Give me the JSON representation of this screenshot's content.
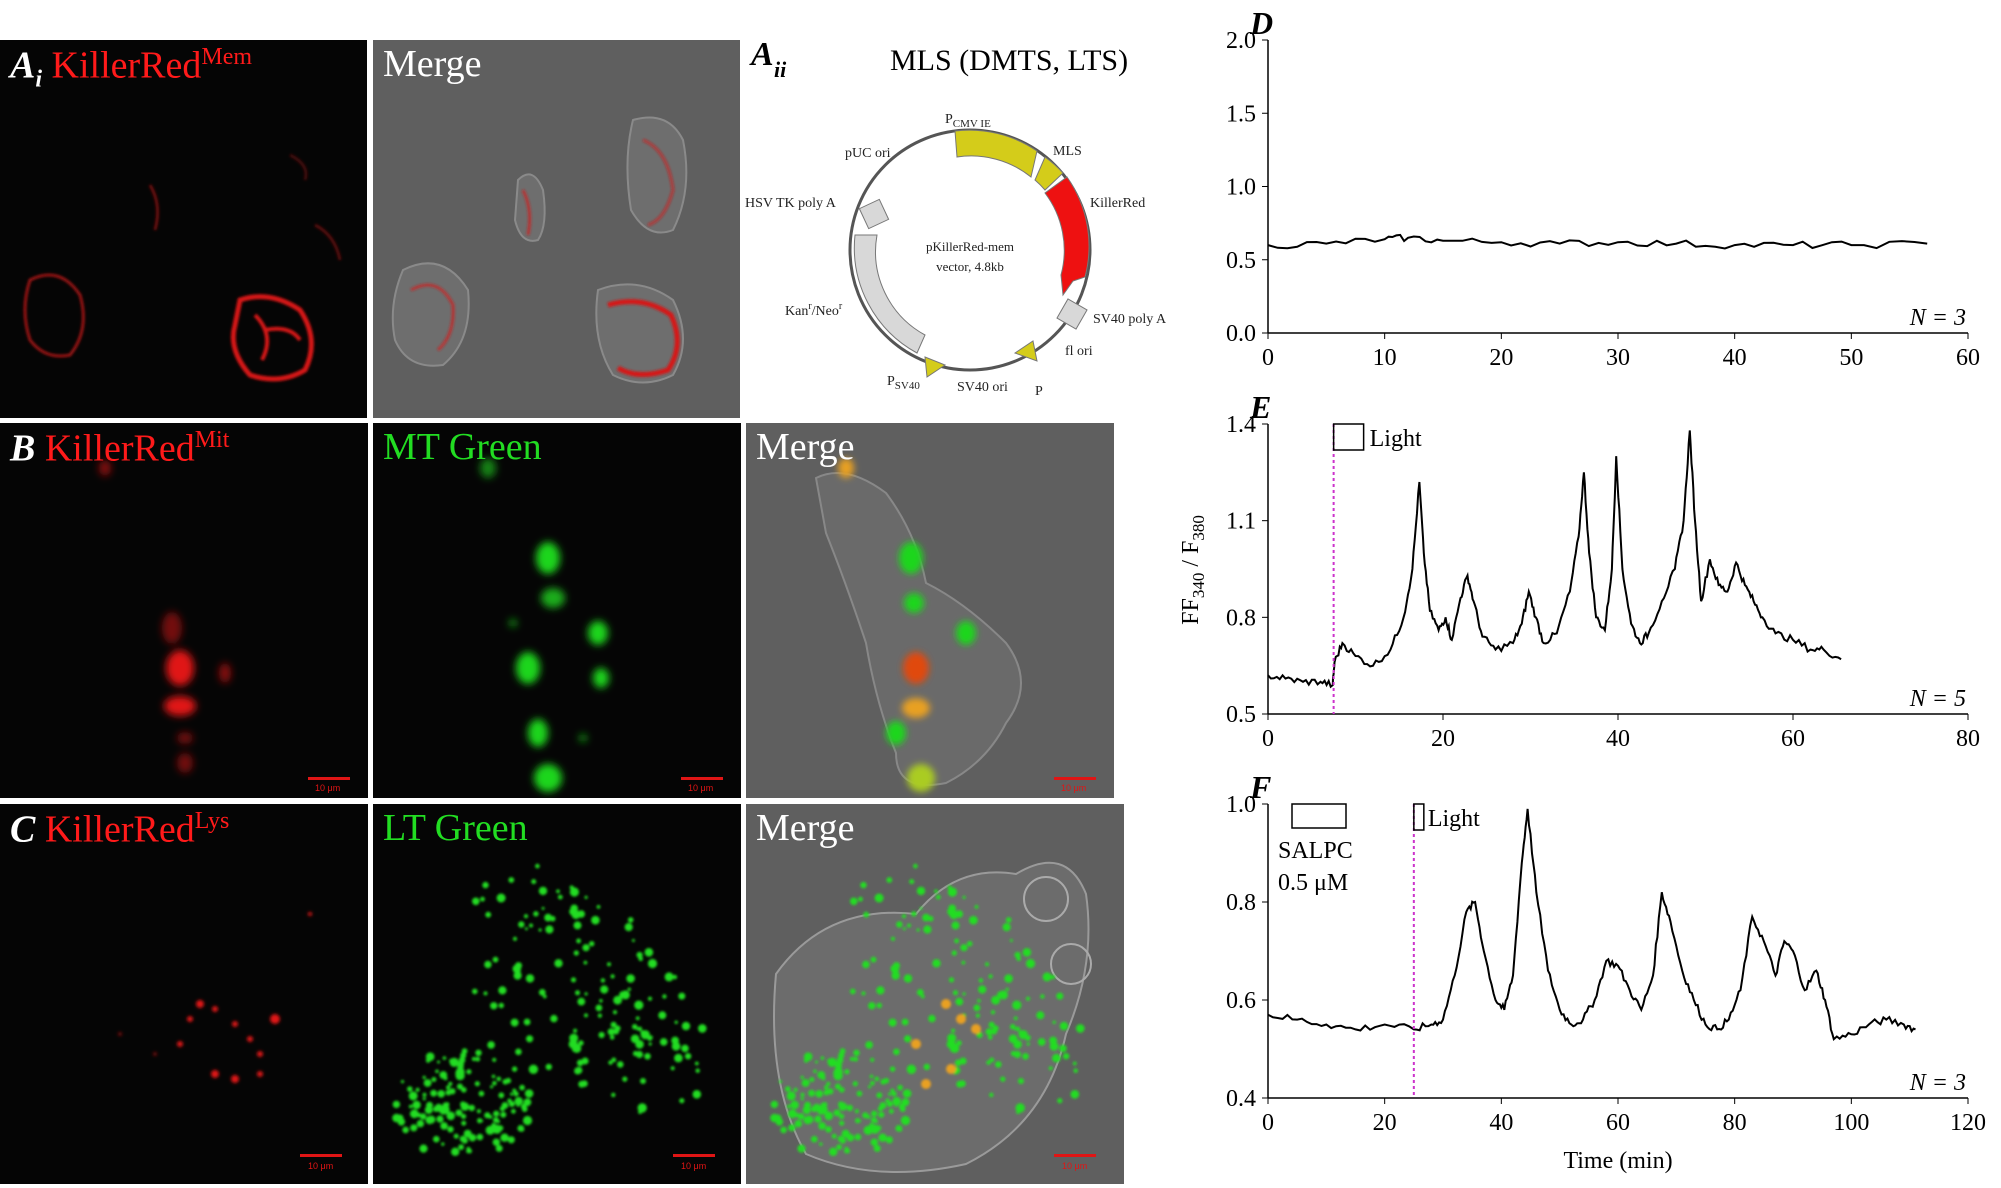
{
  "panels": {
    "ai": {
      "letter": "A",
      "sub": "i",
      "name": "KillerRed",
      "sup": "Mem"
    },
    "ai_merge": {
      "label": "Merge"
    },
    "aii": {
      "letter": "A",
      "sub": "ii",
      "title": "MLS (DMTS, LTS)"
    },
    "b": {
      "letter": "B",
      "name": "KillerRed",
      "sup": "Mit"
    },
    "b_green": {
      "label": "MT Green"
    },
    "b_merge": {
      "label": "Merge"
    },
    "c": {
      "letter": "C",
      "name": "KillerRed",
      "sup": "Lys"
    },
    "c_green": {
      "label": "LT Green"
    },
    "c_merge": {
      "label": "Merge"
    },
    "scale_label": "10 μm"
  },
  "plasmid": {
    "center_1": "pKillerRed-mem",
    "center_2": "vector, 4.8kb",
    "pcmv": "P",
    "pcmv_sub": "CMV IE",
    "mls": "MLS",
    "killerred": "KillerRed",
    "sv40polya": "SV40 poly A",
    "f1ori": "fl ori",
    "p": "P",
    "sv40ori": "SV40 ori",
    "psv40": "P",
    "psv40_sub": "SV40",
    "kan": "Kan",
    "kan_sup": "r",
    "neo": "/Neo",
    "neo_sup": "r",
    "hsv": "HSV TK poly A",
    "puc": "pUC ori",
    "colors": {
      "yellow": "#d4cc1a",
      "red": "#ee1111",
      "gray": "#d8d8d8"
    }
  },
  "chart_data": [
    {
      "panel": "D",
      "type": "line",
      "n_label": "N = 3",
      "xlim": [
        0,
        60
      ],
      "ylim": [
        0,
        2.0
      ],
      "xticks": [
        "0",
        "10",
        "20",
        "30",
        "40",
        "50",
        "60"
      ],
      "yticks": [
        "0.0",
        "0.5",
        "1.0",
        "1.5",
        "2.0"
      ],
      "series": [
        {
          "x": [
            0,
            5,
            10,
            12,
            15,
            20,
            25,
            30,
            35,
            40,
            45,
            50,
            56.5
          ],
          "y": [
            0.6,
            0.61,
            0.64,
            0.65,
            0.63,
            0.62,
            0.61,
            0.62,
            0.61,
            0.6,
            0.6,
            0.6,
            0.61
          ]
        }
      ]
    },
    {
      "panel": "E",
      "type": "line",
      "n_label": "N = 5",
      "ylabel": "FF340 / F380",
      "ylabel_parts": [
        "FF",
        "340",
        " / F",
        "380"
      ],
      "light_label": "Light",
      "light_x": 7.5,
      "xlim": [
        0,
        80
      ],
      "ylim": [
        0.5,
        1.4
      ],
      "xticks": [
        "0",
        "20",
        "40",
        "60",
        "80"
      ],
      "yticks": [
        "0.5",
        "0.8",
        "1.1",
        "1.4"
      ],
      "series": [
        {
          "x": [
            0,
            2,
            4,
            6,
            7.4,
            7.6,
            8.5,
            10,
            12,
            14,
            15.5,
            16.5,
            17.3,
            17.8,
            18.5,
            19.5,
            20.3,
            21,
            22,
            22.8,
            23.5,
            24.5,
            26,
            28,
            29,
            29.8,
            30.6,
            31.5,
            33,
            34.5,
            35.5,
            36.1,
            36.7,
            37.5,
            38.5,
            39.3,
            39.8,
            40.5,
            41.5,
            42.5,
            43.5,
            45,
            46.5,
            47.5,
            48.2,
            48.8,
            49.5,
            50.5,
            51.5,
            52.5,
            53.5,
            54.5,
            55.5,
            56.5,
            58,
            60,
            62,
            63.5,
            65.5
          ],
          "y": [
            0.62,
            0.61,
            0.6,
            0.6,
            0.59,
            0.66,
            0.72,
            0.68,
            0.65,
            0.7,
            0.8,
            0.95,
            1.22,
            1.0,
            0.82,
            0.76,
            0.8,
            0.73,
            0.86,
            0.93,
            0.85,
            0.74,
            0.7,
            0.72,
            0.78,
            0.88,
            0.8,
            0.72,
            0.75,
            0.88,
            1.05,
            1.25,
            1.0,
            0.8,
            0.76,
            0.95,
            1.3,
            0.95,
            0.78,
            0.72,
            0.75,
            0.85,
            0.95,
            1.1,
            1.38,
            1.1,
            0.85,
            0.98,
            0.9,
            0.88,
            0.97,
            0.9,
            0.85,
            0.8,
            0.75,
            0.73,
            0.7,
            0.7,
            0.67
          ]
        }
      ]
    },
    {
      "panel": "F",
      "type": "line",
      "n_label": "N = 3",
      "xlabel": "Time (min)",
      "light_label": "Light",
      "light_x": 25,
      "drug_label": "SALPC",
      "drug_conc": "0.5 μM",
      "xlim": [
        0,
        120
      ],
      "ylim": [
        0.4,
        1.0
      ],
      "xticks": [
        "0",
        "20",
        "40",
        "60",
        "80",
        "100",
        "120"
      ],
      "yticks": [
        "0.4",
        "0.6",
        "0.8",
        "1.0"
      ],
      "series": [
        {
          "x": [
            0,
            5,
            10,
            15,
            20,
            25,
            28,
            30,
            32,
            34,
            35.5,
            37,
            39,
            40.5,
            42,
            43.5,
            44.5,
            46,
            48,
            50,
            52,
            54,
            56,
            58,
            60,
            62,
            64,
            66,
            67.5,
            69,
            71,
            73,
            75,
            77,
            79,
            81,
            83,
            85,
            87,
            88.5,
            90,
            92,
            94,
            95.5,
            97,
            100,
            103,
            106,
            109,
            111
          ],
          "y": [
            0.57,
            0.56,
            0.55,
            0.54,
            0.55,
            0.54,
            0.55,
            0.56,
            0.65,
            0.78,
            0.8,
            0.7,
            0.6,
            0.58,
            0.65,
            0.88,
            0.99,
            0.82,
            0.66,
            0.58,
            0.55,
            0.56,
            0.6,
            0.68,
            0.67,
            0.62,
            0.58,
            0.65,
            0.82,
            0.76,
            0.66,
            0.6,
            0.55,
            0.54,
            0.56,
            0.62,
            0.77,
            0.72,
            0.65,
            0.72,
            0.7,
            0.62,
            0.66,
            0.6,
            0.52,
            0.53,
            0.55,
            0.56,
            0.55,
            0.54
          ]
        }
      ]
    }
  ]
}
